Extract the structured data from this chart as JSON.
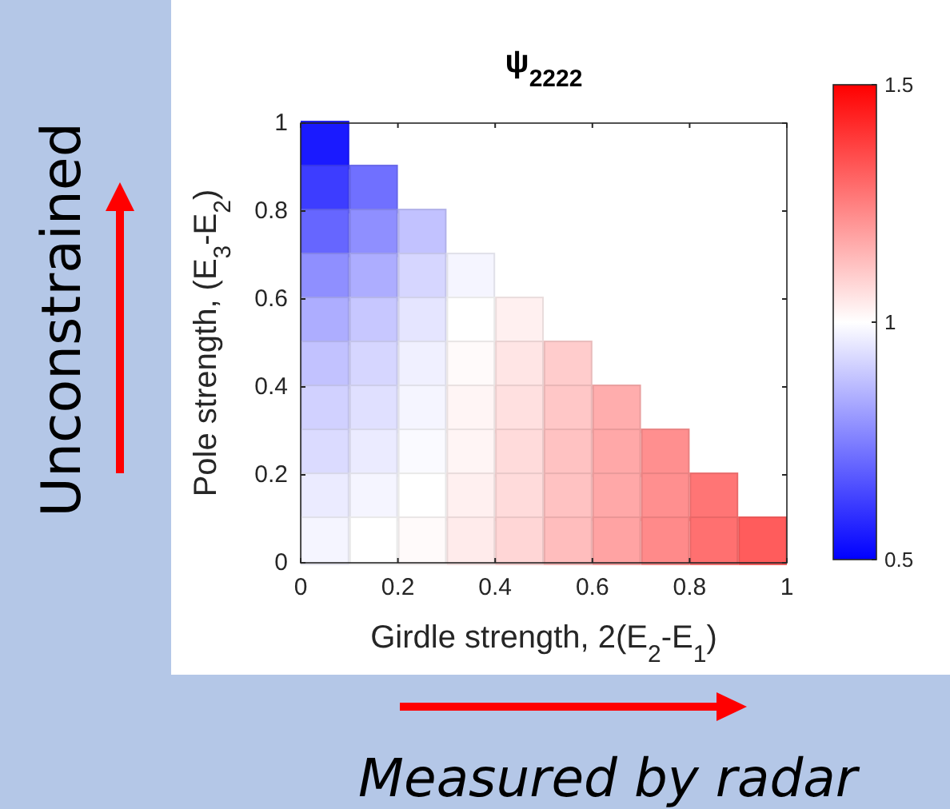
{
  "chart_data": {
    "type": "scatter",
    "marker": "square",
    "title": "ψ$_{2222}$",
    "xlabel": "Girdle strength, 2(E$_{2}$-E$_{1}$)",
    "ylabel": "Pole strength, (E$_{3}$-E$_{2}$)",
    "xlim": [
      0,
      1
    ],
    "xticks": [
      0,
      0.2,
      0.4,
      0.6,
      0.8,
      1
    ],
    "ylim": [
      0,
      1
    ],
    "yticks": [
      0,
      0.2,
      0.4,
      0.6,
      0.8,
      1
    ],
    "clim": [
      0.5,
      1.5
    ],
    "cticks": [
      0.5,
      1,
      1.5
    ],
    "x": [
      0.05,
      0.05,
      0.15,
      0.05,
      0.15,
      0.25,
      0.05,
      0.15,
      0.25,
      0.35,
      0.05,
      0.15,
      0.25,
      0.35,
      0.45,
      0.05,
      0.15,
      0.25,
      0.35,
      0.45,
      0.55,
      0.05,
      0.15,
      0.25,
      0.35,
      0.45,
      0.55,
      0.65,
      0.05,
      0.15,
      0.25,
      0.35,
      0.45,
      0.55,
      0.65,
      0.75,
      0.05,
      0.15,
      0.25,
      0.35,
      0.45,
      0.55,
      0.65,
      0.75,
      0.85,
      0.05,
      0.15,
      0.25,
      0.35,
      0.45,
      0.55,
      0.65,
      0.75,
      0.85,
      0.95
    ],
    "values": [
      0.95,
      0.85,
      0.85,
      0.75,
      0.75,
      0.75,
      0.65,
      0.65,
      0.65,
      0.65,
      0.55,
      0.55,
      0.55,
      0.55,
      0.55,
      0.45,
      0.45,
      0.45,
      0.45,
      0.45,
      0.45,
      0.35,
      0.35,
      0.35,
      0.35,
      0.35,
      0.35,
      0.35,
      0.25,
      0.25,
      0.25,
      0.25,
      0.25,
      0.25,
      0.25,
      0.25,
      0.15,
      0.15,
      0.15,
      0.15,
      0.15,
      0.15,
      0.15,
      0.15,
      0.15,
      0.05,
      0.05,
      0.05,
      0.05,
      0.05,
      0.05,
      0.05,
      0.05,
      0.05,
      0.05
    ],
    "cvalues": [
      0.55,
      0.62,
      0.72,
      0.7,
      0.78,
      0.88,
      0.78,
      0.84,
      0.92,
      0.98,
      0.84,
      0.89,
      0.95,
      1.0,
      1.03,
      0.88,
      0.92,
      0.97,
      1.01,
      1.05,
      1.1,
      0.91,
      0.94,
      0.98,
      1.02,
      1.06,
      1.11,
      1.16,
      0.93,
      0.96,
      0.99,
      1.02,
      1.07,
      1.12,
      1.17,
      1.22,
      0.96,
      0.98,
      1.0,
      1.03,
      1.07,
      1.12,
      1.17,
      1.22,
      1.27,
      0.98,
      1.0,
      1.01,
      1.04,
      1.08,
      1.13,
      1.18,
      1.23,
      1.28,
      1.32
    ],
    "annotations": [
      "Unconstrained",
      "Measured by radar"
    ]
  }
}
